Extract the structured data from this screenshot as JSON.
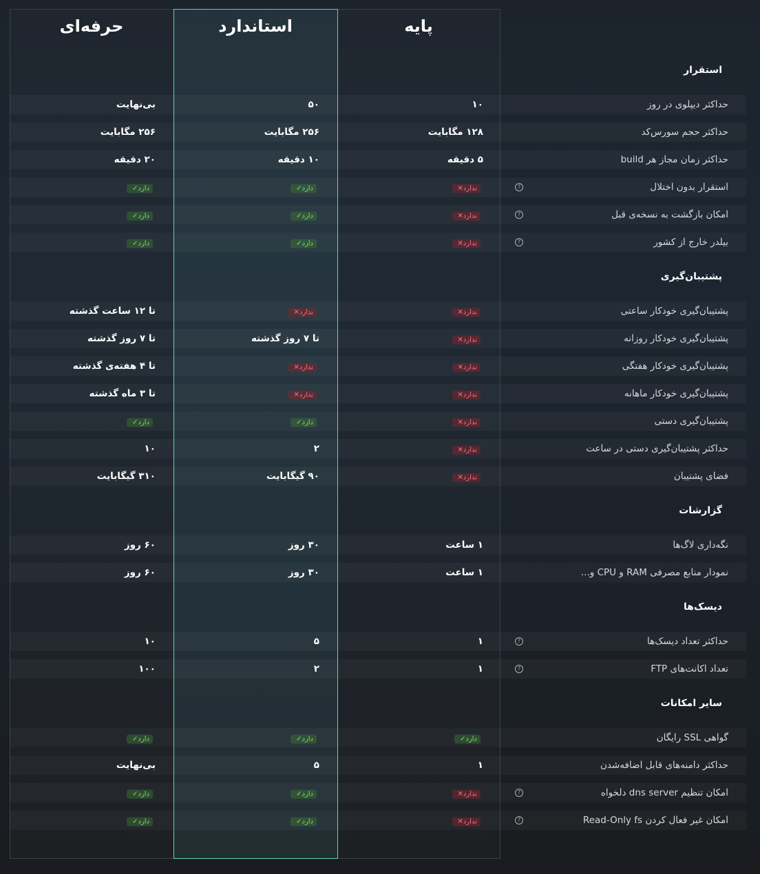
{
  "plans": [
    "پایه",
    "استاندارد",
    "حرفه‌ای"
  ],
  "sections": [
    {
      "title": "استقرار",
      "rows": [
        {
          "label": "حداکثر دیپلوی در روز",
          "cells": [
            "۱۰",
            "۵۰",
            "بی‌نهایت"
          ]
        },
        {
          "label": "حداکثر حجم سورس‌کد",
          "cells": [
            "۱۲۸ مگابایت",
            "۲۵۶ مگابایت",
            "۲۵۶ مگابایت"
          ]
        },
        {
          "label": "حداکثر زمان مجاز هر build",
          "cells": [
            "۵ دقیقه",
            "۱۰ دقیقه",
            "۲۰ دقیقه"
          ]
        },
        {
          "label": "استقرار بدون اختلال",
          "info": true,
          "cells": [
            {
              "status": false,
              "label": "ندارد"
            },
            {
              "status": true,
              "label": "دارد"
            },
            {
              "status": true,
              "label": "دارد"
            }
          ]
        },
        {
          "label": "امکان بازگشت به نسخه‌ی قبل",
          "info": true,
          "cells": [
            {
              "status": false,
              "label": "ندارد"
            },
            {
              "status": true,
              "label": "دارد"
            },
            {
              "status": true,
              "label": "دارد"
            }
          ]
        },
        {
          "label": "بیلدر خارج از کشور",
          "info": true,
          "cells": [
            {
              "status": false,
              "label": "ندارد"
            },
            {
              "status": true,
              "label": "دارد"
            },
            {
              "status": true,
              "label": "دارد"
            }
          ]
        }
      ]
    },
    {
      "title": "پشتیبان‌گیری",
      "rows": [
        {
          "label": "پشتیبان‌گیری خودکار ساعتی",
          "cells": [
            {
              "status": false,
              "label": "ندارد"
            },
            {
              "status": false,
              "label": "ندارد"
            },
            "تا ۱۲ ساعت گذشته"
          ]
        },
        {
          "label": "پشتیبان‌گیری خودکار روزانه",
          "cells": [
            {
              "status": false,
              "label": "ندارد"
            },
            "تا ۷ روز گذشته",
            "تا ۷ روز گذشته"
          ]
        },
        {
          "label": "پشتیبان‌گیری خودکار هفتگی",
          "cells": [
            {
              "status": false,
              "label": "ندارد"
            },
            {
              "status": false,
              "label": "ندارد"
            },
            "تا ۴ هفته‌ی گذشته"
          ]
        },
        {
          "label": "پشتیبان‌گیری خودکار ماهانه",
          "cells": [
            {
              "status": false,
              "label": "ندارد"
            },
            {
              "status": false,
              "label": "ندارد"
            },
            "تا ۳ ماه گذشته"
          ]
        },
        {
          "label": "پشتیبان‌گیری دستی",
          "cells": [
            {
              "status": false,
              "label": "ندارد"
            },
            {
              "status": true,
              "label": "دارد"
            },
            {
              "status": true,
              "label": "دارد"
            }
          ]
        },
        {
          "label": "حداکثر پشتیبان‌گیری دستی در ساعت",
          "cells": [
            {
              "status": false,
              "label": "ندارد"
            },
            "۲",
            "۱۰"
          ]
        },
        {
          "label": "فضای پشتیبان",
          "cells": [
            {
              "status": false,
              "label": "ندارد"
            },
            "۹۰ گیگابایت",
            "۳۱۰ گیگابایت"
          ]
        }
      ]
    },
    {
      "title": "گزارشات",
      "rows": [
        {
          "label": "نگه‌داری لاگ‌ها",
          "cells": [
            "۱ ساعت",
            "۳۰ روز",
            "۶۰ روز"
          ]
        },
        {
          "label": "نمودار منابع مصرفی RAM و CPU و...",
          "cells": [
            "۱ ساعت",
            "۳۰ روز",
            "۶۰ روز"
          ]
        }
      ]
    },
    {
      "title": "دیسک‌ها",
      "rows": [
        {
          "label": "حداکثر تعداد دیسک‌ها",
          "info": true,
          "cells": [
            "۱",
            "۵",
            "۱۰"
          ]
        },
        {
          "label": "تعداد اکانت‌های FTP",
          "info": true,
          "cells": [
            "۱",
            "۲",
            "۱۰۰"
          ]
        }
      ]
    },
    {
      "title": "سایر امکانات",
      "rows": [
        {
          "label": "گواهی SSL رایگان",
          "cells": [
            {
              "status": true,
              "label": "دارد"
            },
            {
              "status": true,
              "label": "دارد"
            },
            {
              "status": true,
              "label": "دارد"
            }
          ]
        },
        {
          "label": "حداکثر دامنه‌های قابل اضافه‌شدن",
          "cells": [
            "۱",
            "۵",
            "بی‌نهایت"
          ]
        },
        {
          "label": "امکان تنظیم dns server دلخواه",
          "info": true,
          "cells": [
            {
              "status": false,
              "label": "ندارد"
            },
            {
              "status": true,
              "label": "دارد"
            },
            {
              "status": true,
              "label": "دارد"
            }
          ]
        },
        {
          "label": "امکان غیر فعال کردن Read-Only fs",
          "info": true,
          "cells": [
            {
              "status": false,
              "label": "ندارد"
            },
            {
              "status": true,
              "label": "دارد"
            },
            {
              "status": true,
              "label": "دارد"
            }
          ]
        }
      ]
    }
  ]
}
